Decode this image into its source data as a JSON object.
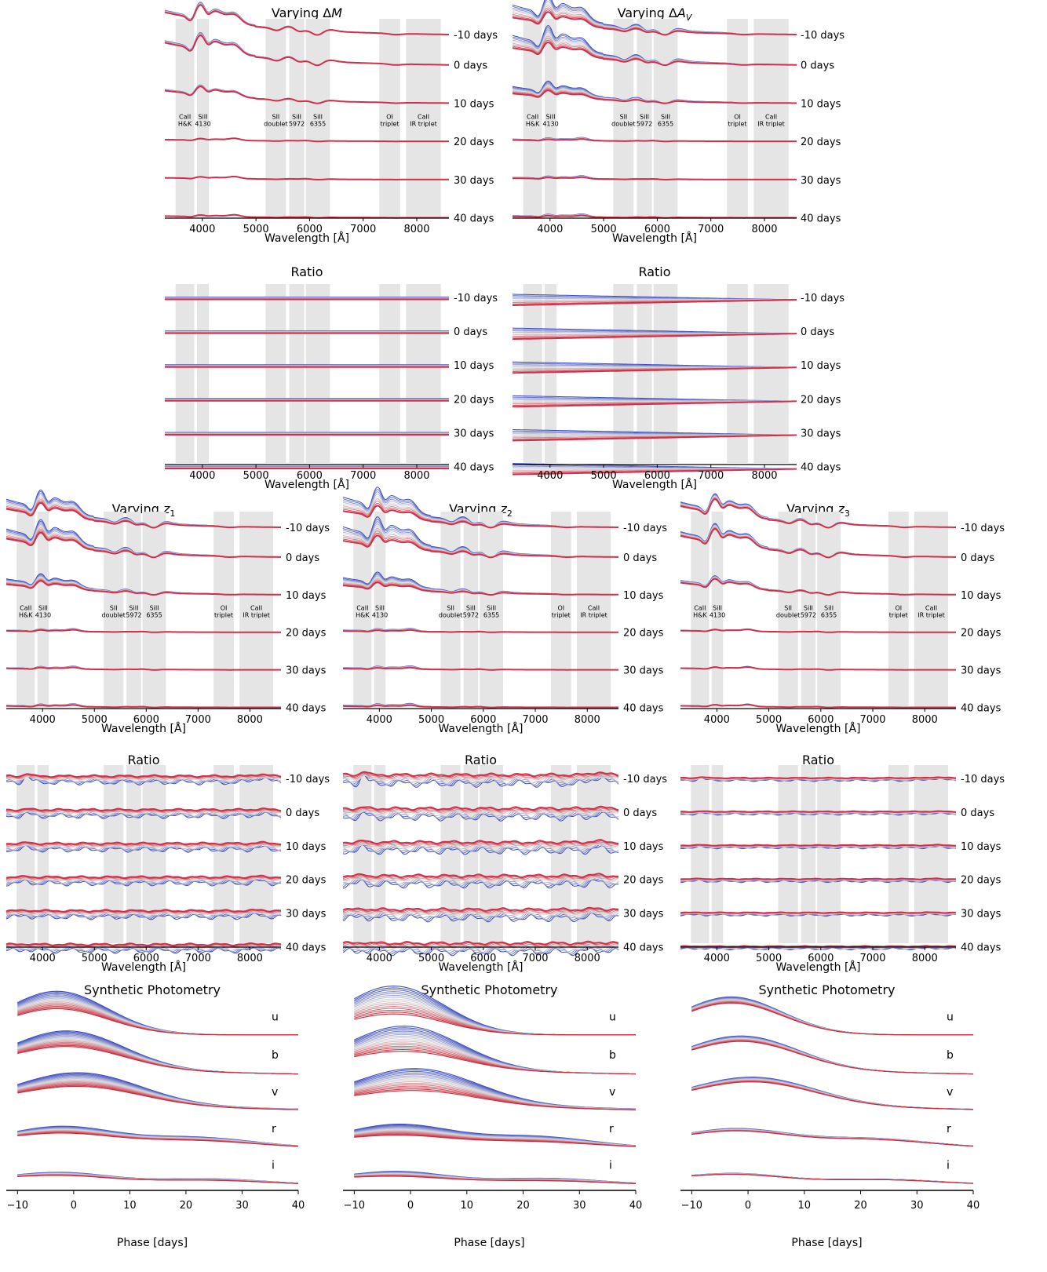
{
  "colors": {
    "band": "#e5e5e5",
    "cold": "#3b4cc0",
    "mid": "#dddddd",
    "warm": "#cc2a3a",
    "highlight": "#d0304a",
    "axis": "#000000"
  },
  "phase_labels": [
    "-10 days",
    "0 days",
    "10 days",
    "20 days",
    "30 days",
    "40 days"
  ],
  "band_labels": [
    "u",
    "b",
    "v",
    "r",
    "i"
  ],
  "feature_regions": [
    {
      "name": "CaII H&K",
      "line1": "CaII",
      "line2": "H&K",
      "range": [
        3500,
        3850
      ]
    },
    {
      "name": "SiII 4130",
      "line1": "SiII",
      "line2": "4130",
      "range": [
        3900,
        4120
      ]
    },
    {
      "name": "SiII doublet",
      "line1": "SII",
      "line2": "doublet",
      "range": [
        5180,
        5560
      ]
    },
    {
      "name": "SiII 5972",
      "line1": "SiII",
      "line2": "5972",
      "range": [
        5620,
        5900
      ]
    },
    {
      "name": "SiII 6355",
      "line1": "SiII",
      "line2": "6355",
      "range": [
        5930,
        6380
      ]
    },
    {
      "name": "OI triplet",
      "line1": "OI",
      "line2": "triplet",
      "range": [
        7300,
        7690
      ]
    },
    {
      "name": "CaII IR triplet",
      "line1": "CaII",
      "line2": "IR triplet",
      "range": [
        7800,
        8450
      ]
    }
  ],
  "chart_data": [
    {
      "id": "spec-dM",
      "type": "line",
      "title": "Varying ΔM",
      "xlabel": "Wavelength [Å]",
      "xlim": [
        3300,
        8600
      ],
      "xticks": [
        4000,
        5000,
        6000,
        7000,
        8000
      ],
      "kind": "spectra",
      "parameter": "ΔM"
    },
    {
      "id": "spec-dAv",
      "type": "line",
      "title": "Varying ΔA_V",
      "xlabel": "Wavelength [Å]",
      "xlim": [
        3300,
        8600
      ],
      "xticks": [
        4000,
        5000,
        6000,
        7000,
        8000
      ],
      "kind": "spectra",
      "parameter": "ΔA_V"
    },
    {
      "id": "ratio-dM",
      "type": "line",
      "title": "Ratio",
      "xlabel": "Wavelength [Å]",
      "xlim": [
        3300,
        8600
      ],
      "xticks": [
        4000,
        5000,
        6000,
        7000,
        8000
      ],
      "kind": "ratio",
      "parameter": "ΔM"
    },
    {
      "id": "ratio-dAv",
      "type": "line",
      "title": "Ratio",
      "xlabel": "Wavelength [Å]",
      "xlim": [
        3300,
        8600
      ],
      "xticks": [
        4000,
        5000,
        6000,
        7000,
        8000
      ],
      "kind": "ratio",
      "parameter": "ΔA_V"
    },
    {
      "id": "spec-z1",
      "type": "line",
      "title": "Varying z_1",
      "xlabel": "Wavelength [Å]",
      "xlim": [
        3300,
        8600
      ],
      "xticks": [
        4000,
        5000,
        6000,
        7000,
        8000
      ],
      "kind": "spectra",
      "parameter": "z_1"
    },
    {
      "id": "spec-z2",
      "type": "line",
      "title": "Varying z_2",
      "xlabel": "Wavelength [Å]",
      "xlim": [
        3300,
        8600
      ],
      "xticks": [
        4000,
        5000,
        6000,
        7000,
        8000
      ],
      "kind": "spectra",
      "parameter": "z_2"
    },
    {
      "id": "spec-z3",
      "type": "line",
      "title": "Varying z_3",
      "xlabel": "Wavelength [Å]",
      "xlim": [
        3300,
        8600
      ],
      "xticks": [
        4000,
        5000,
        6000,
        7000,
        8000
      ],
      "kind": "spectra",
      "parameter": "z_3"
    },
    {
      "id": "ratio-z1",
      "type": "line",
      "title": "Ratio",
      "xlabel": "Wavelength [Å]",
      "xlim": [
        3300,
        8600
      ],
      "xticks": [
        4000,
        5000,
        6000,
        7000,
        8000
      ],
      "kind": "ratio",
      "parameter": "z_1"
    },
    {
      "id": "ratio-z2",
      "type": "line",
      "title": "Ratio",
      "xlabel": "Wavelength [Å]",
      "xlim": [
        3300,
        8600
      ],
      "xticks": [
        4000,
        5000,
        6000,
        7000,
        8000
      ],
      "kind": "ratio",
      "parameter": "z_2"
    },
    {
      "id": "ratio-z3",
      "type": "line",
      "title": "Ratio",
      "xlabel": "Wavelength [Å]",
      "xlim": [
        3300,
        8600
      ],
      "xticks": [
        4000,
        5000,
        6000,
        7000,
        8000
      ],
      "kind": "ratio",
      "parameter": "z_3"
    },
    {
      "id": "phot-z1",
      "type": "line",
      "title": "Synthetic Photometry",
      "xlabel": "Phase [days]",
      "xlim": [
        -12,
        40
      ],
      "xticks": [
        -10,
        0,
        10,
        20,
        30,
        40
      ],
      "kind": "photometry",
      "parameter": "z_1"
    },
    {
      "id": "phot-z2",
      "type": "line",
      "title": "Synthetic Photometry",
      "xlabel": "Phase [days]",
      "xlim": [
        -12,
        40
      ],
      "xticks": [
        -10,
        0,
        10,
        20,
        30,
        40
      ],
      "kind": "photometry",
      "parameter": "z_2"
    },
    {
      "id": "phot-z3",
      "type": "line",
      "title": "Synthetic Photometry",
      "xlabel": "Phase [days]",
      "xlim": [
        -12,
        40
      ],
      "xticks": [
        -10,
        0,
        10,
        20,
        30,
        40
      ],
      "kind": "photometry",
      "parameter": "z_3"
    }
  ]
}
